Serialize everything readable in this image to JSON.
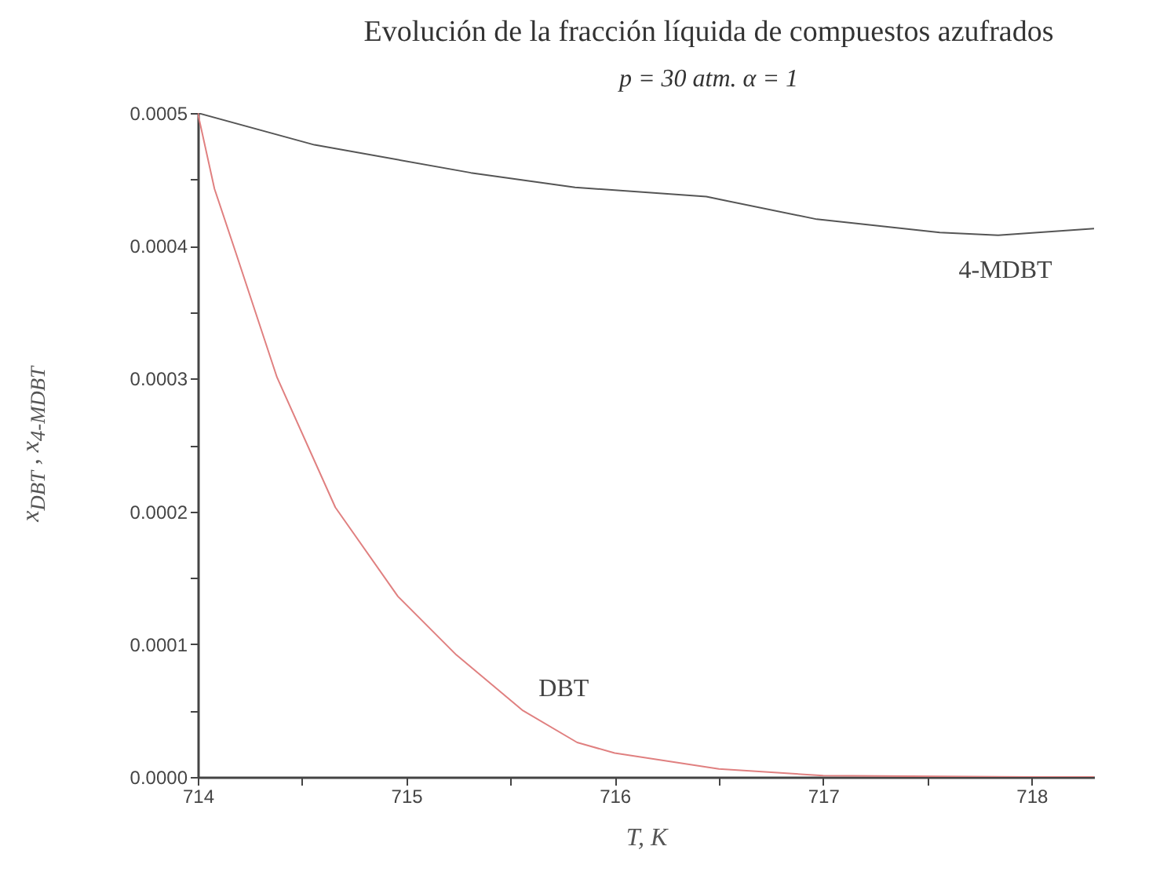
{
  "chart_data": {
    "type": "line",
    "title": "Evolución de la fracción líquida de compuestos azufrados",
    "subtitle": "p = 30 atm.    α = 1",
    "xlabel": "T, K",
    "ylabel": "x$_{DBT}$ , x$_{4-MDBT}$",
    "series": [
      {
        "name": "4-MDBT",
        "color": "#555555",
        "x": [
          714,
          714.56,
          715.31,
          715.81,
          716.44,
          716.97,
          717.56,
          717.84,
          718.3
        ],
        "values": [
          0.0005,
          0.000476,
          0.000455,
          0.000444,
          0.000437,
          0.00042,
          0.00041,
          0.000408,
          0.000413
        ]
      },
      {
        "name": "DBT",
        "color": "#e08080",
        "x": [
          714,
          714.08,
          714.18,
          714.38,
          714.66,
          714.96,
          715.24,
          715.56,
          715.82,
          716,
          716.5,
          717,
          718,
          718.3
        ],
        "values": [
          0.0005,
          0.000443,
          0.000396,
          0.000301,
          0.000203,
          0.000136,
          9.2e-05,
          5e-05,
          2.6e-05,
          1.8e-05,
          6e-06,
          1e-06,
          0,
          0
        ]
      }
    ],
    "xlim": [
      714,
      718.3
    ],
    "xticks": [
      714,
      {
        "value": 714.5,
        "label": null
      },
      715,
      {
        "value": 715.5,
        "label": null
      },
      716,
      {
        "value": 716.5,
        "label": null
      },
      717,
      {
        "value": 717.5,
        "label": null
      },
      718
    ],
    "ylim": [
      0,
      0.0005
    ],
    "yticks": [
      {
        "value": 0,
        "label": "0.0000"
      },
      {
        "value": 5e-05,
        "label": null
      },
      0.0001,
      {
        "value": 0.00015,
        "label": null
      },
      0.0002,
      {
        "value": 0.00025,
        "label": null
      },
      0.0003,
      {
        "value": 0.00035,
        "label": null
      },
      0.0004,
      {
        "value": 0.00045,
        "label": null
      },
      0.0005
    ],
    "grid": false,
    "legend": false,
    "marker": "none",
    "line_style": "solid"
  }
}
